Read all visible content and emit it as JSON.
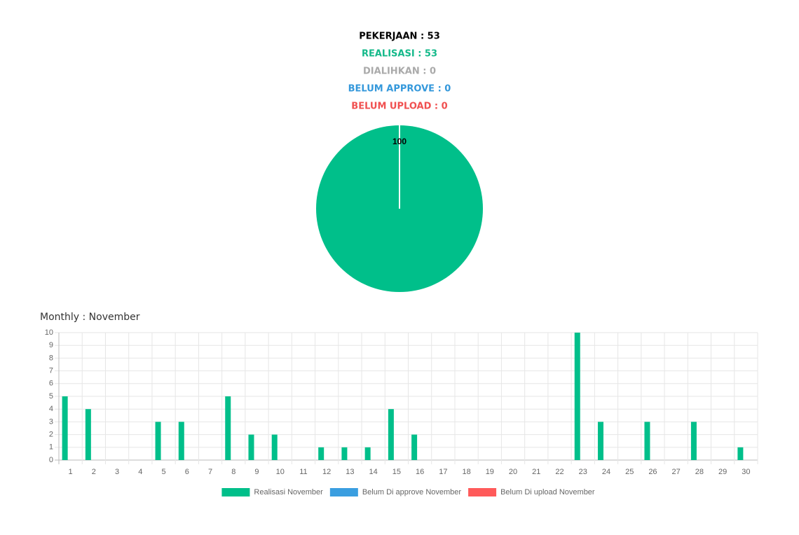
{
  "header": {
    "lines": [
      {
        "text": "PEKERJAAN : 53",
        "color": "#000000"
      },
      {
        "text": "REALISASI : 53",
        "color": "#14b98a"
      },
      {
        "text": "DIALIHKAN : 0",
        "color": "#aaaaaa"
      },
      {
        "text": "BELUM APPROVE : 0",
        "color": "#3498db"
      },
      {
        "text": "BELUM UPLOAD : 0",
        "color": "#f05050"
      }
    ]
  },
  "chart_data": [
    {
      "type": "pie",
      "values": [
        100
      ],
      "colors": [
        "#00bf8a"
      ]
    },
    {
      "type": "bar",
      "title": "Monthly : November",
      "categories": [
        "1",
        "2",
        "3",
        "4",
        "5",
        "6",
        "7",
        "8",
        "9",
        "10",
        "11",
        "12",
        "13",
        "14",
        "15",
        "16",
        "17",
        "18",
        "19",
        "20",
        "21",
        "22",
        "23",
        "24",
        "25",
        "26",
        "27",
        "28",
        "29",
        "30"
      ],
      "series": [
        {
          "name": "Realisasi November",
          "color": "#00bf8a",
          "values": [
            5,
            4,
            0,
            0,
            3,
            3,
            0,
            5,
            2,
            2,
            0,
            1,
            1,
            1,
            4,
            2,
            0,
            0,
            0,
            0,
            0,
            0,
            10,
            3,
            0,
            3,
            0,
            3,
            0,
            1
          ]
        },
        {
          "name": "Belum Di approve November",
          "color": "#3a9ee0",
          "values": [
            0,
            0,
            0,
            0,
            0,
            0,
            0,
            0,
            0,
            0,
            0,
            0,
            0,
            0,
            0,
            0,
            0,
            0,
            0,
            0,
            0,
            0,
            0,
            0,
            0,
            0,
            0,
            0,
            0,
            0
          ]
        },
        {
          "name": "Belum Di upload November",
          "color": "#ff5a5a",
          "values": [
            0,
            0,
            0,
            0,
            0,
            0,
            0,
            0,
            0,
            0,
            0,
            0,
            0,
            0,
            0,
            0,
            0,
            0,
            0,
            0,
            0,
            0,
            0,
            0,
            0,
            0,
            0,
            0,
            0,
            0
          ]
        }
      ],
      "ylim": [
        0,
        10
      ],
      "yticks": [
        0,
        1,
        2,
        3,
        4,
        5,
        6,
        7,
        8,
        9,
        10
      ],
      "grid": true,
      "legend": "bottom"
    }
  ]
}
